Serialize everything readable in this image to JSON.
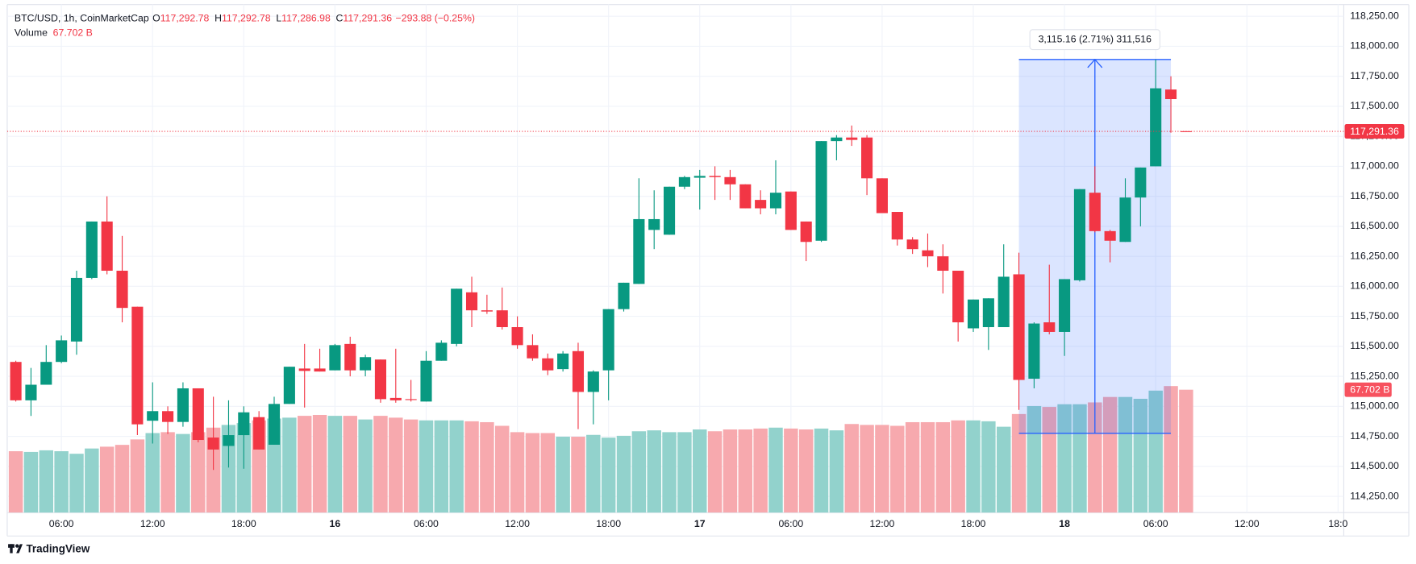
{
  "chart_data": {
    "type": "candlestick",
    "legend": {
      "symbol": "BTC/USD, 1h, CoinMarketCap",
      "ohlc": [
        {
          "label": "O",
          "value": "117,292.78"
        },
        {
          "label": "H",
          "value": "117,292.78"
        },
        {
          "label": "L",
          "value": "117,286.98"
        },
        {
          "label": "C",
          "value": "117,291.36"
        }
      ],
      "change": "−293.88 (−0.25%)",
      "volume_label": "Volume",
      "volume_value": "67.702 B"
    },
    "categories": [
      null,
      null,
      null,
      "06:00",
      null,
      null,
      null,
      null,
      null,
      "12:00",
      null,
      null,
      null,
      null,
      null,
      "18:00",
      null,
      null,
      null,
      null,
      null,
      "16",
      null,
      null,
      null,
      null,
      null,
      "06:00",
      null,
      null,
      null,
      null,
      null,
      "12:00",
      null,
      null,
      null,
      null,
      null,
      "18:00",
      null,
      null,
      null,
      null,
      null,
      "17",
      null,
      null,
      null,
      null,
      null,
      "06:00",
      null,
      null,
      null,
      null,
      null,
      "12:00",
      null,
      null,
      null,
      null,
      null,
      "18:00",
      null,
      null,
      null,
      null,
      null,
      "18",
      null,
      null,
      null,
      null,
      null,
      "06:00",
      null,
      null,
      null,
      null,
      null,
      "12:00",
      null,
      null,
      null,
      null,
      null,
      "18:0"
    ],
    "open": [
      115370,
      115050,
      115180,
      115370,
      115540,
      116070,
      116540,
      116130,
      115830,
      114880,
      114960,
      114870,
      115150,
      114740,
      114670,
      114760,
      114910,
      114680,
      115020,
      115315,
      115315,
      115300,
      115520,
      115300,
      115390,
      115070,
      115060,
      115040,
      115380,
      115520,
      115950,
      115800,
      115800,
      115660,
      115510,
      115400,
      115310,
      115460,
      115120,
      115300,
      115810,
      116020,
      116470,
      116430,
      116830,
      116905,
      116920,
      116910,
      116850,
      116720,
      116650,
      116790,
      116540,
      116380,
      117210,
      117240,
      117240,
      116900,
      116620,
      116390,
      116300,
      116250,
      116130,
      115650,
      115660,
      115660,
      116100,
      115230,
      115700,
      115620,
      116050,
      116780,
      116460,
      116370,
      116740,
      117000,
      117640,
      117292.78,
      null,
      null,
      null,
      null,
      null,
      null,
      null,
      null,
      null,
      null
    ],
    "high": [
      115380,
      115320,
      115510,
      115590,
      116130,
      116540,
      116750,
      116420,
      115830,
      115200,
      115000,
      115200,
      115150,
      115080,
      115050,
      115000,
      114960,
      115080,
      115330,
      115520,
      115480,
      115520,
      115580,
      115430,
      115390,
      115480,
      115220,
      115460,
      115550,
      115980,
      116080,
      115930,
      115990,
      115750,
      115600,
      115440,
      115460,
      115530,
      115300,
      115810,
      116030,
      116900,
      116800,
      116830,
      116920,
      116970,
      117000,
      116970,
      116850,
      116800,
      117050,
      116790,
      116540,
      117210,
      117260,
      117340,
      117260,
      116900,
      116620,
      116410,
      116440,
      116350,
      116130,
      115890,
      115900,
      116350,
      116280,
      115700,
      116180,
      116060,
      116810,
      117000,
      116470,
      116900,
      116990,
      117890,
      117750,
      117292.78,
      null,
      null,
      null,
      null,
      null,
      null,
      null,
      null,
      null,
      null
    ],
    "low": [
      115040,
      114920,
      115180,
      115360,
      115430,
      116060,
      116100,
      115700,
      114760,
      114690,
      114770,
      114830,
      114700,
      114470,
      114490,
      114480,
      114640,
      114680,
      115020,
      114990,
      115290,
      115300,
      115250,
      115250,
      115030,
      115030,
      115040,
      115040,
      115380,
      115500,
      115660,
      115770,
      115640,
      115480,
      115380,
      115260,
      115290,
      114810,
      114850,
      115050,
      115790,
      116020,
      116310,
      116430,
      116810,
      116640,
      116720,
      116720,
      116650,
      116600,
      116600,
      116470,
      116210,
      116370,
      117050,
      117170,
      116760,
      116610,
      116340,
      116270,
      116160,
      115940,
      115540,
      115620,
      115470,
      115660,
      114970,
      115150,
      115600,
      115420,
      116040,
      116450,
      116200,
      116370,
      116500,
      117000,
      117280,
      117286.98,
      null,
      null,
      null,
      null,
      null,
      null,
      null,
      null,
      null,
      null
    ],
    "close": [
      115050,
      115180,
      115370,
      115550,
      116070,
      116540,
      116130,
      115820,
      114850,
      114960,
      114870,
      115150,
      114720,
      114640,
      114760,
      114950,
      114640,
      115020,
      115330,
      115295,
      115290,
      115510,
      115300,
      115410,
      115060,
      115050,
      115055,
      115380,
      115530,
      115980,
      115800,
      115790,
      115660,
      115510,
      115400,
      115300,
      115440,
      115120,
      115290,
      115810,
      116030,
      116560,
      116560,
      116830,
      116910,
      116920,
      116910,
      116850,
      116650,
      116650,
      116780,
      116470,
      116370,
      117210,
      117240,
      117220,
      116900,
      116610,
      116390,
      116310,
      116250,
      116130,
      115700,
      115890,
      115900,
      116080,
      115220,
      115690,
      115620,
      116060,
      116810,
      116460,
      116380,
      116740,
      116990,
      117650,
      117560,
      117291.36,
      null,
      null,
      null,
      null,
      null,
      null,
      null,
      null,
      null,
      null
    ],
    "volume": [
      33.8,
      33.4,
      34.3,
      33.8,
      32.4,
      35.3,
      36.3,
      37.3,
      40.3,
      43.8,
      44.3,
      43.3,
      44.3,
      46.8,
      48.3,
      49.3,
      50.8,
      51.8,
      52.3,
      53.3,
      53.8,
      53.3,
      53.3,
      51.3,
      53.3,
      52.3,
      51.3,
      50.8,
      50.8,
      50.8,
      50.3,
      49.8,
      47.8,
      44.3,
      43.8,
      43.8,
      41.8,
      41.8,
      42.8,
      41.3,
      42.3,
      44.8,
      45.3,
      44.3,
      44.3,
      45.8,
      44.8,
      45.8,
      45.8,
      46.3,
      46.8,
      46.3,
      45.8,
      46.3,
      45.3,
      48.8,
      48.3,
      48.3,
      47.8,
      49.8,
      49.8,
      49.8,
      50.8,
      50.8,
      50.3,
      47.3,
      54.3,
      58.7,
      58.2,
      59.7,
      59.7,
      60.7,
      63.7,
      63.7,
      62.7,
      67.2,
      69.7,
      67.702,
      null,
      null,
      null,
      null,
      null,
      null,
      null,
      null,
      null,
      null
    ],
    "ylim": [
      114115,
      118348
    ],
    "yticks": [
      {
        "value": 114250,
        "label": "114,250.00"
      },
      {
        "value": 114500,
        "label": "114,500.00"
      },
      {
        "value": 114750,
        "label": "114,750.00"
      },
      {
        "value": 115000,
        "label": "115,000.00"
      },
      {
        "value": 115250,
        "label": "115,250.00"
      },
      {
        "value": 115500,
        "label": "115,500.00"
      },
      {
        "value": 115750,
        "label": "115,750.00"
      },
      {
        "value": 116000,
        "label": "116,000.00"
      },
      {
        "value": 116250,
        "label": "116,250.00"
      },
      {
        "value": 116500,
        "label": "116,500.00"
      },
      {
        "value": 116750,
        "label": "116,750.00"
      },
      {
        "value": 117000,
        "label": "117,000.00"
      },
      {
        "value": 117250,
        "label": "117,250.00"
      },
      {
        "value": 117500,
        "label": "117,500.00"
      },
      {
        "value": 117750,
        "label": "117,750.00"
      },
      {
        "value": 118000,
        "label": "118,000.00"
      },
      {
        "value": 118250,
        "label": "118,250.00"
      }
    ],
    "volume_ylim": [
      0,
      280
    ],
    "grid": true,
    "up_color": "#089981",
    "down_color": "#f23645",
    "up_volume_color": "#92d2cc",
    "down_volume_color": "#f7a9ae",
    "measure": {
      "label": "3,115.16 (2.71%) 311,516",
      "start_index": 66,
      "end_index": 76,
      "low": 114775,
      "high": 117890.16,
      "color": "#2962ff"
    },
    "watermark": "TradingView"
  }
}
